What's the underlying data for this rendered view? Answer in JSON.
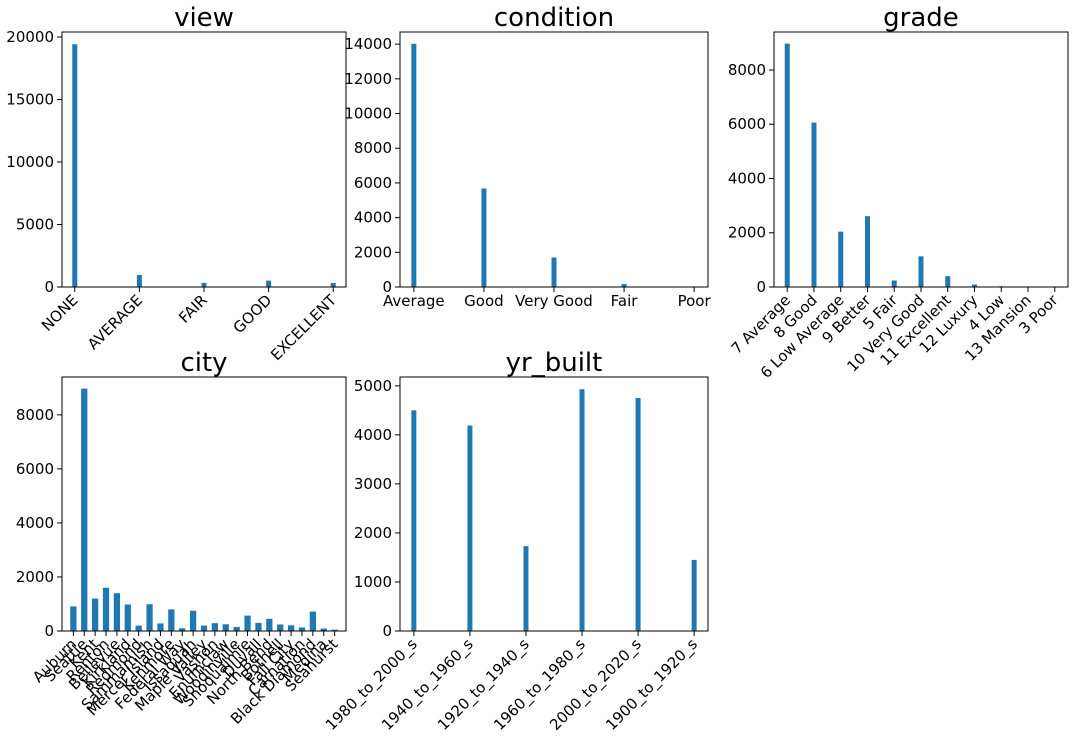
{
  "chart_data": [
    {
      "type": "bar",
      "title": "view",
      "categories": [
        "NONE",
        "AVERAGE",
        "FAIR",
        "GOOD",
        "EXCELLENT"
      ],
      "values": [
        19420,
        960,
        330,
        510,
        320
      ],
      "ylim": [
        0,
        20400
      ],
      "yticks": [
        0,
        5000,
        10000,
        15000,
        20000
      ],
      "xlabel_rotation": 45,
      "color": "#1f77b4"
    },
    {
      "type": "bar",
      "title": "condition",
      "categories": [
        "Average",
        "Good",
        "Very Good",
        "Fair",
        "Poor"
      ],
      "values": [
        14020,
        5680,
        1700,
        170,
        30
      ],
      "ylim": [
        0,
        14700
      ],
      "yticks": [
        0,
        2000,
        4000,
        6000,
        8000,
        10000,
        12000,
        14000
      ],
      "xlabel_rotation": 0,
      "color": "#1f77b4"
    },
    {
      "type": "bar",
      "title": "grade",
      "categories": [
        "7 Average",
        "8 Good",
        "6 Low Average",
        "9 Better",
        "5 Fair",
        "10 Very Good",
        "11 Excellent",
        "12 Luxury",
        "4 Low",
        "13 Mansion",
        "3 Poor"
      ],
      "values": [
        8970,
        6060,
        2040,
        2610,
        240,
        1130,
        400,
        90,
        27,
        13,
        1
      ],
      "ylim": [
        0,
        9400
      ],
      "yticks": [
        0,
        2000,
        4000,
        6000,
        8000
      ],
      "xlabel_rotation": 45,
      "color": "#1f77b4"
    },
    {
      "type": "bar",
      "title": "city",
      "categories": [
        "Auburn",
        "Seattle",
        "Kent",
        "Renton",
        "Bellevue",
        "Kirkland",
        "Redmond",
        "Sammamish",
        "Mercer Island",
        "Kenmore",
        "Federal Way",
        "Issaquah",
        "Maple Valley",
        "Vashon",
        "Enumclaw",
        "Woodinville",
        "Snoqualmie",
        "Duvall",
        "North Bend",
        "Bothell",
        "Fall City",
        "Carnation",
        "Black Diamond",
        "Medina",
        "Seahurst"
      ],
      "values": [
        910,
        8970,
        1200,
        1600,
        1400,
        980,
        200,
        990,
        280,
        800,
        100,
        750,
        200,
        290,
        250,
        150,
        570,
        300,
        450,
        240,
        210,
        130,
        720,
        90,
        50
      ],
      "ylim": [
        0,
        9400
      ],
      "yticks": [
        0,
        2000,
        4000,
        6000,
        8000
      ],
      "xlabel_rotation": 45,
      "color": "#1f77b4"
    },
    {
      "type": "bar",
      "title": "yr_built",
      "categories": [
        "1980_to_2000_s",
        "1940_to_1960_s",
        "1920_to_1940_s",
        "1960_to_1980_s",
        "2000_to_2020_s",
        "1900_to_1920_s"
      ],
      "values": [
        4500,
        4190,
        1730,
        4930,
        4750,
        1450
      ],
      "ylim": [
        0,
        5180
      ],
      "yticks": [
        0,
        1000,
        2000,
        3000,
        4000,
        5000
      ],
      "xlabel_rotation": 45,
      "color": "#1f77b4"
    }
  ]
}
